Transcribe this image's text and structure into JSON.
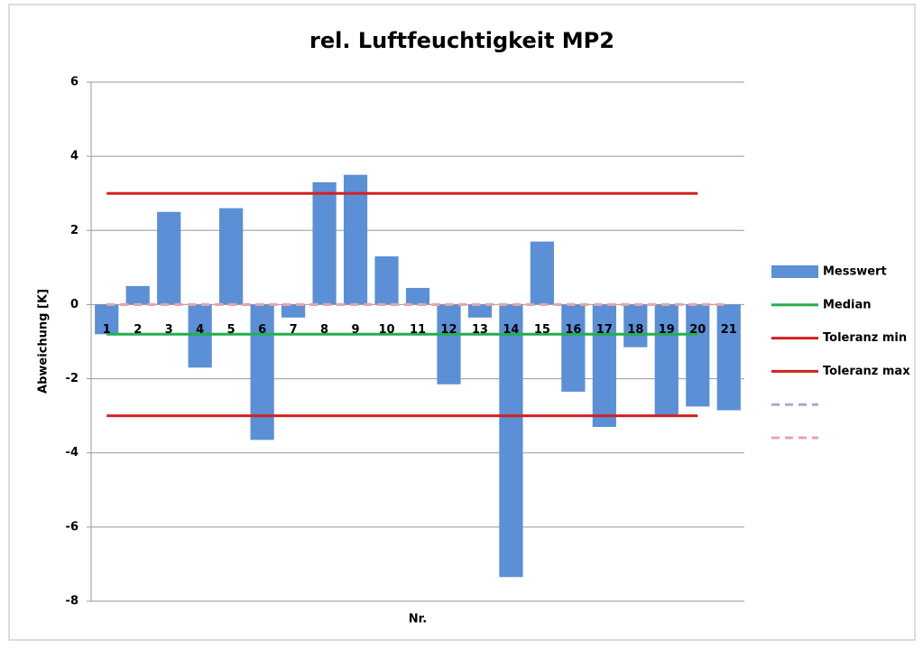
{
  "chart_data": {
    "type": "bar",
    "title": "rel. Luftfeuchtigkeit MP2",
    "y_label": "Abweichung [K]",
    "x_label": "Nr.",
    "categories": [
      "1",
      "2",
      "3",
      "4",
      "5",
      "6",
      "7",
      "8",
      "9",
      "10",
      "11",
      "12",
      "13",
      "14",
      "15",
      "16",
      "17",
      "18",
      "19",
      "20",
      "21"
    ],
    "series": [
      {
        "name": "Messwert",
        "type": "bar",
        "color": "#5b8fd6",
        "values": [
          -0.8,
          0.5,
          2.5,
          -1.7,
          2.6,
          -3.65,
          -0.35,
          3.3,
          3.5,
          1.3,
          0.45,
          -2.15,
          -0.35,
          -7.35,
          1.7,
          -2.35,
          -3.3,
          -1.15,
          -3.0,
          -2.75,
          -2.85
        ]
      },
      {
        "name": "Median",
        "type": "line",
        "color": "#22b04c",
        "values": [
          -0.8,
          -0.8,
          -0.8,
          -0.8,
          -0.8,
          -0.8,
          -0.8,
          -0.8,
          -0.8,
          -0.8,
          -0.8,
          -0.8,
          -0.8,
          -0.8,
          -0.8,
          -0.8,
          -0.8,
          -0.8,
          -0.8,
          -0.8,
          null
        ]
      },
      {
        "name": "Toleranz min",
        "type": "line",
        "color": "#d42020",
        "values": [
          -3,
          -3,
          -3,
          -3,
          -3,
          -3,
          -3,
          -3,
          -3,
          -3,
          -3,
          -3,
          -3,
          -3,
          -3,
          -3,
          -3,
          -3,
          -3,
          -3,
          null
        ]
      },
      {
        "name": "Toleranz max",
        "type": "line",
        "color": "#d42020",
        "values": [
          3,
          3,
          3,
          3,
          3,
          3,
          3,
          3,
          3,
          3,
          3,
          3,
          3,
          3,
          3,
          3,
          3,
          3,
          3,
          3,
          null
        ]
      },
      {
        "type": "line",
        "dashed": true,
        "color": "#a8a8d8",
        "values": [
          0,
          0,
          0,
          0,
          0,
          0,
          0,
          0,
          0,
          0,
          0,
          0,
          0,
          0,
          0,
          0,
          0,
          0,
          0,
          0,
          0
        ]
      },
      {
        "type": "line",
        "dashed": true,
        "color": "#e8a4a8",
        "values": [
          0,
          0,
          0,
          0,
          0,
          0,
          0,
          0,
          0,
          0,
          0,
          0,
          0,
          0,
          0,
          0,
          0,
          0,
          0,
          0,
          0
        ]
      }
    ],
    "ylim": [
      -8,
      6
    ],
    "yticks": [
      -8,
      -6,
      -4,
      -2,
      0,
      2,
      4,
      6
    ],
    "grid": true,
    "legend": "right"
  }
}
